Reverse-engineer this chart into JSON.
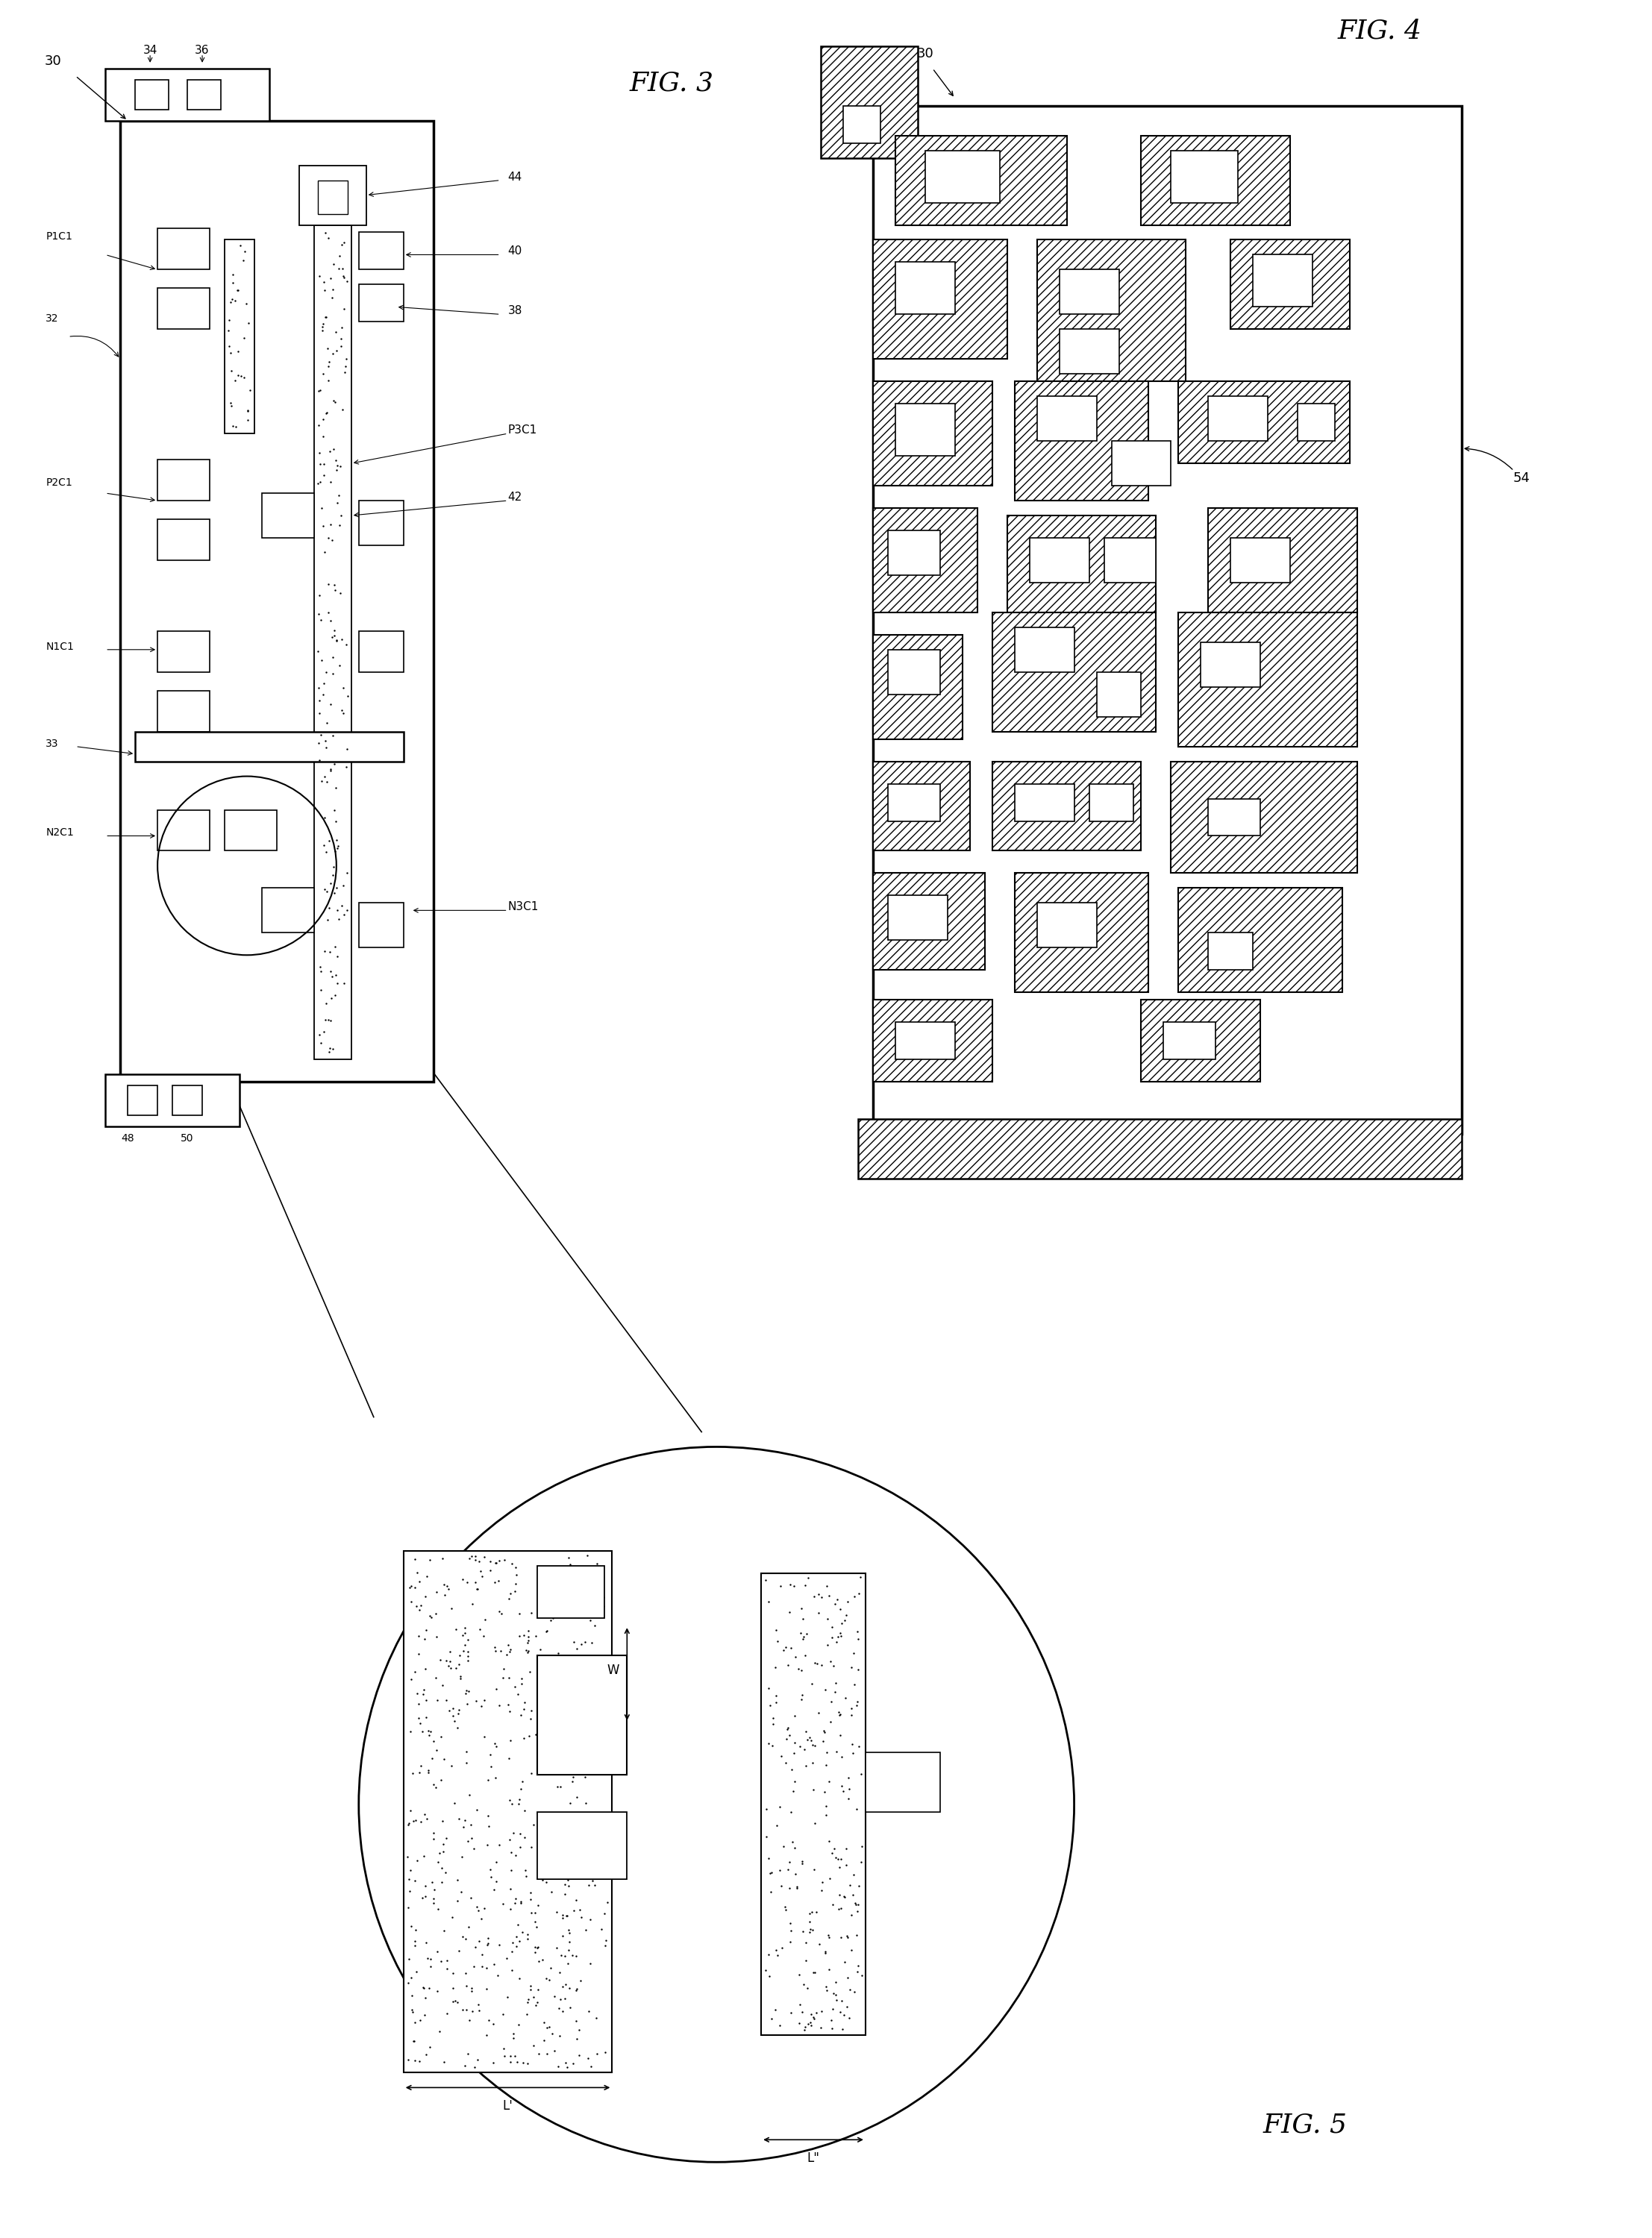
{
  "bg_color": "#ffffff",
  "fig3_title": "FIG. 3",
  "fig4_title": "FIG. 4",
  "fig5_title": "FIG. 5"
}
